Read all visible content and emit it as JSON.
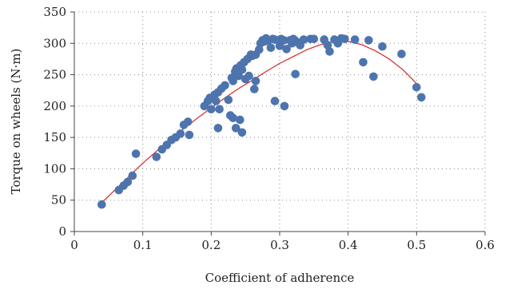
{
  "chart_data": {
    "type": "scatter",
    "xlabel": "Coefficient of adherence",
    "ylabel": "Torque on wheels (N·m)",
    "xlim": [
      0,
      0.6
    ],
    "ylim": [
      0,
      350
    ],
    "x_ticks": [
      0,
      0.1,
      0.2,
      0.3,
      0.4,
      0.5,
      0.6
    ],
    "x_tick_labels": [
      "0",
      "0.1",
      "0.2",
      "0.3",
      "0.4",
      "0.5",
      "0.6"
    ],
    "y_ticks": [
      0,
      50,
      100,
      150,
      200,
      250,
      300,
      350
    ],
    "y_tick_labels": [
      "0",
      "50",
      "100",
      "150",
      "200",
      "250",
      "300",
      "350"
    ],
    "grid": true,
    "colors": {
      "points": "#4e74ad",
      "fit_line": "#d8262b"
    },
    "series": [
      {
        "type": "scatter",
        "x": [
          0.04,
          0.065,
          0.072,
          0.078,
          0.085,
          0.09,
          0.12,
          0.128,
          0.135,
          0.142,
          0.148,
          0.155,
          0.16,
          0.166,
          0.168,
          0.19,
          0.195,
          0.198,
          0.2,
          0.205,
          0.207,
          0.21,
          0.212,
          0.215,
          0.22,
          0.225,
          0.23,
          0.232,
          0.235,
          0.237,
          0.24,
          0.243,
          0.245,
          0.248,
          0.25,
          0.253,
          0.255,
          0.258,
          0.26,
          0.263,
          0.265,
          0.27,
          0.272,
          0.275,
          0.278,
          0.28,
          0.283,
          0.287,
          0.29,
          0.293,
          0.3,
          0.302,
          0.306,
          0.31,
          0.315,
          0.318,
          0.32,
          0.322,
          0.325,
          0.33,
          0.335,
          0.345,
          0.35,
          0.365,
          0.37,
          0.373,
          0.38,
          0.385,
          0.39,
          0.395,
          0.41,
          0.422,
          0.43,
          0.437,
          0.45,
          0.478,
          0.5,
          0.507,
          0.228,
          0.232,
          0.236,
          0.242,
          0.245,
          0.21,
          0.293,
          0.307,
          0.323,
          0.265
        ],
        "y": [
          43,
          66,
          73,
          79,
          89,
          124,
          119,
          131,
          138,
          146,
          150,
          156,
          170,
          175,
          154,
          200,
          208,
          213,
          195,
          218,
          208,
          222,
          195,
          228,
          233,
          210,
          245,
          240,
          255,
          260,
          248,
          265,
          258,
          270,
          243,
          275,
          248,
          282,
          280,
          227,
          282,
          290,
          300,
          305,
          303,
          308,
          304,
          293,
          307,
          306,
          296,
          307,
          305,
          291,
          305,
          300,
          307,
          305,
          302,
          297,
          306,
          307,
          307,
          306,
          297,
          287,
          306,
          300,
          308,
          307,
          306,
          270,
          305,
          247,
          295,
          283,
          230,
          214,
          185,
          181,
          165,
          178,
          158,
          165,
          208,
          200,
          251,
          240
        ]
      },
      {
        "type": "line",
        "x": [
          0.04,
          0.06,
          0.08,
          0.1,
          0.12,
          0.14,
          0.16,
          0.18,
          0.2,
          0.22,
          0.24,
          0.26,
          0.28,
          0.3,
          0.32,
          0.34,
          0.36,
          0.38,
          0.4,
          0.42,
          0.44,
          0.46,
          0.48,
          0.5,
          0.505
        ],
        "y": [
          46,
          67,
          88,
          109,
          128,
          147,
          164,
          181,
          197,
          213,
          228,
          241,
          255,
          268,
          279,
          290,
          298,
          303,
          303,
          298,
          288,
          275,
          258,
          236,
          229
        ]
      }
    ]
  }
}
